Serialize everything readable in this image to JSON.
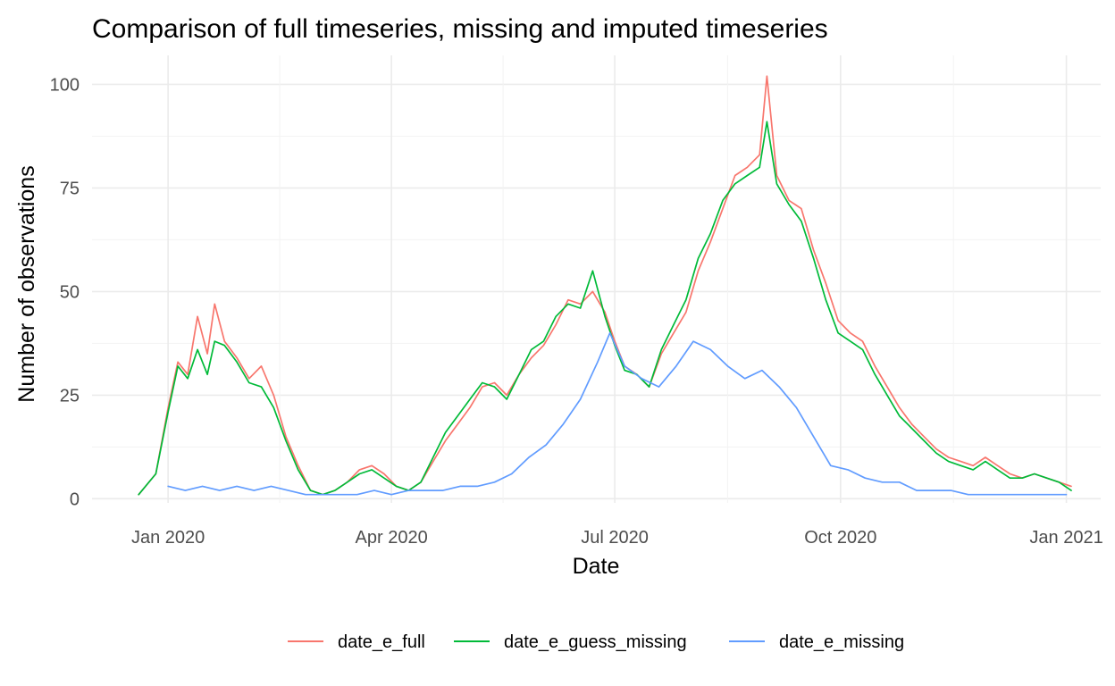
{
  "chart_data": {
    "type": "line",
    "title": "Comparison of full timeseries, missing and imputed timeseries",
    "xlabel": "Date",
    "ylabel": "Number of observations",
    "x_axis": {
      "type": "date",
      "range": [
        "2019-12-01",
        "2021-01-15"
      ],
      "ticks": [
        {
          "date": "2020-01-01",
          "label": "Jan 2020"
        },
        {
          "date": "2020-04-01",
          "label": "Apr 2020"
        },
        {
          "date": "2020-07-01",
          "label": "Jul 2020"
        },
        {
          "date": "2020-10-01",
          "label": "Oct 2020"
        },
        {
          "date": "2021-01-01",
          "label": "Jan 2021"
        }
      ]
    },
    "y_axis": {
      "range": [
        -1,
        107
      ],
      "ticks": [
        0,
        25,
        50,
        75,
        100
      ]
    },
    "grid": true,
    "legend": {
      "position": "bottom"
    },
    "series": [
      {
        "name": "date_e_full",
        "color": "#F8766D",
        "points": [
          [
            "2019-12-20",
            1
          ],
          [
            "2019-12-27",
            6
          ],
          [
            "2020-01-01",
            22
          ],
          [
            "2020-01-05",
            33
          ],
          [
            "2020-01-09",
            30
          ],
          [
            "2020-01-13",
            44
          ],
          [
            "2020-01-17",
            35
          ],
          [
            "2020-01-20",
            47
          ],
          [
            "2020-01-24",
            38
          ],
          [
            "2020-01-29",
            34
          ],
          [
            "2020-02-03",
            29
          ],
          [
            "2020-02-08",
            32
          ],
          [
            "2020-02-13",
            25
          ],
          [
            "2020-02-18",
            15
          ],
          [
            "2020-02-23",
            8
          ],
          [
            "2020-02-28",
            2
          ],
          [
            "2020-03-04",
            1
          ],
          [
            "2020-03-09",
            2
          ],
          [
            "2020-03-14",
            4
          ],
          [
            "2020-03-19",
            7
          ],
          [
            "2020-03-24",
            8
          ],
          [
            "2020-03-29",
            6
          ],
          [
            "2020-04-03",
            3
          ],
          [
            "2020-04-08",
            2
          ],
          [
            "2020-04-13",
            4
          ],
          [
            "2020-04-18",
            9
          ],
          [
            "2020-04-23",
            14
          ],
          [
            "2020-04-28",
            18
          ],
          [
            "2020-05-03",
            22
          ],
          [
            "2020-05-08",
            27
          ],
          [
            "2020-05-13",
            28
          ],
          [
            "2020-05-18",
            25
          ],
          [
            "2020-05-23",
            30
          ],
          [
            "2020-05-28",
            34
          ],
          [
            "2020-06-02",
            37
          ],
          [
            "2020-06-07",
            42
          ],
          [
            "2020-06-12",
            48
          ],
          [
            "2020-06-17",
            47
          ],
          [
            "2020-06-22",
            50
          ],
          [
            "2020-06-27",
            45
          ],
          [
            "2020-07-01",
            38
          ],
          [
            "2020-07-05",
            32
          ],
          [
            "2020-07-10",
            30
          ],
          [
            "2020-07-15",
            27
          ],
          [
            "2020-07-20",
            35
          ],
          [
            "2020-07-25",
            40
          ],
          [
            "2020-07-30",
            45
          ],
          [
            "2020-08-04",
            55
          ],
          [
            "2020-08-09",
            62
          ],
          [
            "2020-08-14",
            70
          ],
          [
            "2020-08-19",
            78
          ],
          [
            "2020-08-24",
            80
          ],
          [
            "2020-08-29",
            83
          ],
          [
            "2020-09-01",
            102
          ],
          [
            "2020-09-05",
            78
          ],
          [
            "2020-09-10",
            72
          ],
          [
            "2020-09-15",
            70
          ],
          [
            "2020-09-20",
            60
          ],
          [
            "2020-09-25",
            52
          ],
          [
            "2020-09-30",
            43
          ],
          [
            "2020-10-05",
            40
          ],
          [
            "2020-10-10",
            38
          ],
          [
            "2020-10-15",
            32
          ],
          [
            "2020-10-20",
            27
          ],
          [
            "2020-10-25",
            22
          ],
          [
            "2020-10-30",
            18
          ],
          [
            "2020-11-04",
            15
          ],
          [
            "2020-11-09",
            12
          ],
          [
            "2020-11-14",
            10
          ],
          [
            "2020-11-19",
            9
          ],
          [
            "2020-11-24",
            8
          ],
          [
            "2020-11-29",
            10
          ],
          [
            "2020-12-04",
            8
          ],
          [
            "2020-12-09",
            6
          ],
          [
            "2020-12-14",
            5
          ],
          [
            "2020-12-19",
            6
          ],
          [
            "2020-12-24",
            5
          ],
          [
            "2020-12-29",
            4
          ],
          [
            "2021-01-03",
            3
          ]
        ]
      },
      {
        "name": "date_e_guess_missing",
        "color": "#00BA38",
        "points": [
          [
            "2019-12-20",
            1
          ],
          [
            "2019-12-27",
            6
          ],
          [
            "2020-01-01",
            21
          ],
          [
            "2020-01-05",
            32
          ],
          [
            "2020-01-09",
            29
          ],
          [
            "2020-01-13",
            36
          ],
          [
            "2020-01-17",
            30
          ],
          [
            "2020-01-20",
            38
          ],
          [
            "2020-01-24",
            37
          ],
          [
            "2020-01-29",
            33
          ],
          [
            "2020-02-03",
            28
          ],
          [
            "2020-02-08",
            27
          ],
          [
            "2020-02-13",
            22
          ],
          [
            "2020-02-18",
            14
          ],
          [
            "2020-02-23",
            7
          ],
          [
            "2020-02-28",
            2
          ],
          [
            "2020-03-04",
            1
          ],
          [
            "2020-03-09",
            2
          ],
          [
            "2020-03-14",
            4
          ],
          [
            "2020-03-19",
            6
          ],
          [
            "2020-03-24",
            7
          ],
          [
            "2020-03-29",
            5
          ],
          [
            "2020-04-03",
            3
          ],
          [
            "2020-04-08",
            2
          ],
          [
            "2020-04-13",
            4
          ],
          [
            "2020-04-18",
            10
          ],
          [
            "2020-04-23",
            16
          ],
          [
            "2020-04-28",
            20
          ],
          [
            "2020-05-03",
            24
          ],
          [
            "2020-05-08",
            28
          ],
          [
            "2020-05-13",
            27
          ],
          [
            "2020-05-18",
            24
          ],
          [
            "2020-05-23",
            30
          ],
          [
            "2020-05-28",
            36
          ],
          [
            "2020-06-02",
            38
          ],
          [
            "2020-06-07",
            44
          ],
          [
            "2020-06-12",
            47
          ],
          [
            "2020-06-17",
            46
          ],
          [
            "2020-06-22",
            55
          ],
          [
            "2020-06-27",
            44
          ],
          [
            "2020-07-01",
            37
          ],
          [
            "2020-07-05",
            31
          ],
          [
            "2020-07-10",
            30
          ],
          [
            "2020-07-15",
            27
          ],
          [
            "2020-07-20",
            36
          ],
          [
            "2020-07-25",
            42
          ],
          [
            "2020-07-30",
            48
          ],
          [
            "2020-08-04",
            58
          ],
          [
            "2020-08-09",
            64
          ],
          [
            "2020-08-14",
            72
          ],
          [
            "2020-08-19",
            76
          ],
          [
            "2020-08-24",
            78
          ],
          [
            "2020-08-29",
            80
          ],
          [
            "2020-09-01",
            91
          ],
          [
            "2020-09-05",
            76
          ],
          [
            "2020-09-10",
            71
          ],
          [
            "2020-09-15",
            67
          ],
          [
            "2020-09-20",
            58
          ],
          [
            "2020-09-25",
            48
          ],
          [
            "2020-09-30",
            40
          ],
          [
            "2020-10-05",
            38
          ],
          [
            "2020-10-10",
            36
          ],
          [
            "2020-10-15",
            30
          ],
          [
            "2020-10-20",
            25
          ],
          [
            "2020-10-25",
            20
          ],
          [
            "2020-10-30",
            17
          ],
          [
            "2020-11-04",
            14
          ],
          [
            "2020-11-09",
            11
          ],
          [
            "2020-11-14",
            9
          ],
          [
            "2020-11-19",
            8
          ],
          [
            "2020-11-24",
            7
          ],
          [
            "2020-11-29",
            9
          ],
          [
            "2020-12-04",
            7
          ],
          [
            "2020-12-09",
            5
          ],
          [
            "2020-12-14",
            5
          ],
          [
            "2020-12-19",
            6
          ],
          [
            "2020-12-24",
            5
          ],
          [
            "2020-12-29",
            4
          ],
          [
            "2021-01-03",
            2
          ]
        ]
      },
      {
        "name": "date_e_missing",
        "color": "#619CFF",
        "points": [
          [
            "2020-01-01",
            3
          ],
          [
            "2020-01-08",
            2
          ],
          [
            "2020-01-15",
            3
          ],
          [
            "2020-01-22",
            2
          ],
          [
            "2020-01-29",
            3
          ],
          [
            "2020-02-05",
            2
          ],
          [
            "2020-02-12",
            3
          ],
          [
            "2020-02-19",
            2
          ],
          [
            "2020-02-26",
            1
          ],
          [
            "2020-03-04",
            1
          ],
          [
            "2020-03-11",
            1
          ],
          [
            "2020-03-18",
            1
          ],
          [
            "2020-03-25",
            2
          ],
          [
            "2020-04-01",
            1
          ],
          [
            "2020-04-08",
            2
          ],
          [
            "2020-04-15",
            2
          ],
          [
            "2020-04-22",
            2
          ],
          [
            "2020-04-29",
            3
          ],
          [
            "2020-05-06",
            3
          ],
          [
            "2020-05-13",
            4
          ],
          [
            "2020-05-20",
            6
          ],
          [
            "2020-05-27",
            10
          ],
          [
            "2020-06-03",
            13
          ],
          [
            "2020-06-10",
            18
          ],
          [
            "2020-06-17",
            24
          ],
          [
            "2020-06-24",
            33
          ],
          [
            "2020-06-29",
            40
          ],
          [
            "2020-07-05",
            32
          ],
          [
            "2020-07-12",
            29
          ],
          [
            "2020-07-19",
            27
          ],
          [
            "2020-07-26",
            32
          ],
          [
            "2020-08-02",
            38
          ],
          [
            "2020-08-09",
            36
          ],
          [
            "2020-08-16",
            32
          ],
          [
            "2020-08-23",
            29
          ],
          [
            "2020-08-30",
            31
          ],
          [
            "2020-09-06",
            27
          ],
          [
            "2020-09-13",
            22
          ],
          [
            "2020-09-20",
            15
          ],
          [
            "2020-09-27",
            8
          ],
          [
            "2020-10-04",
            7
          ],
          [
            "2020-10-11",
            5
          ],
          [
            "2020-10-18",
            4
          ],
          [
            "2020-10-25",
            4
          ],
          [
            "2020-11-01",
            2
          ],
          [
            "2020-11-08",
            2
          ],
          [
            "2020-11-15",
            2
          ],
          [
            "2020-11-22",
            1
          ],
          [
            "2020-11-29",
            1
          ],
          [
            "2020-12-06",
            1
          ],
          [
            "2020-12-13",
            1
          ],
          [
            "2020-12-20",
            1
          ],
          [
            "2020-12-27",
            1
          ],
          [
            "2021-01-01",
            1
          ]
        ]
      }
    ]
  }
}
